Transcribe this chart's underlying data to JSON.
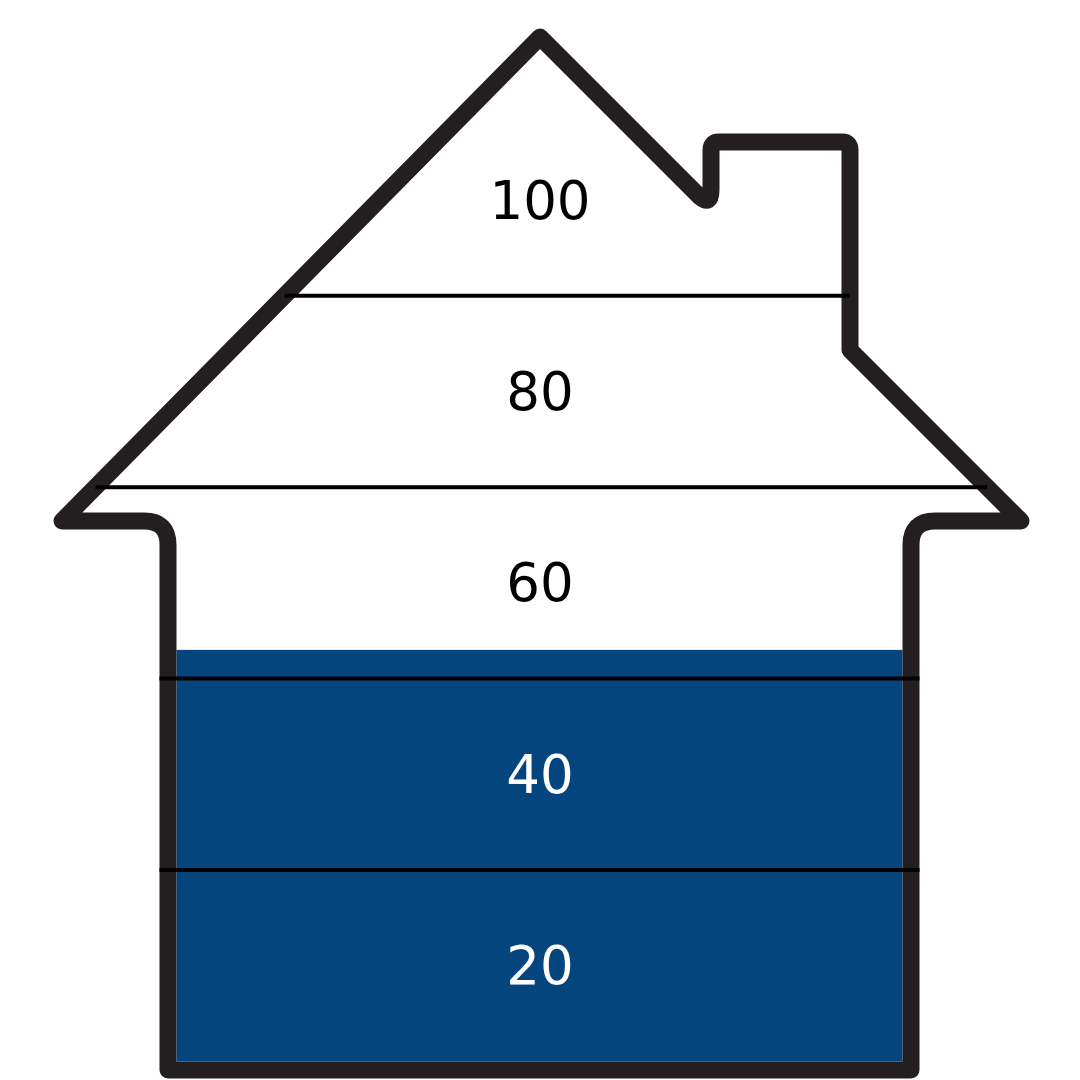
{
  "chart_data": {
    "type": "bar",
    "categories": [
      null
    ],
    "values": [
      53
    ],
    "color": "#04457e",
    "ylim": [
      10,
      100
    ],
    "yticks": [
      20,
      40,
      60,
      80,
      100
    ],
    "ref_lines": [
      {
        "axis": "y",
        "value": 30,
        "color": "#000000"
      },
      {
        "axis": "y",
        "value": 50,
        "color": "#000000"
      },
      {
        "axis": "y",
        "value": 70,
        "color": "#000000"
      },
      {
        "axis": "y",
        "value": 90,
        "color": "#000000"
      }
    ]
  }
}
